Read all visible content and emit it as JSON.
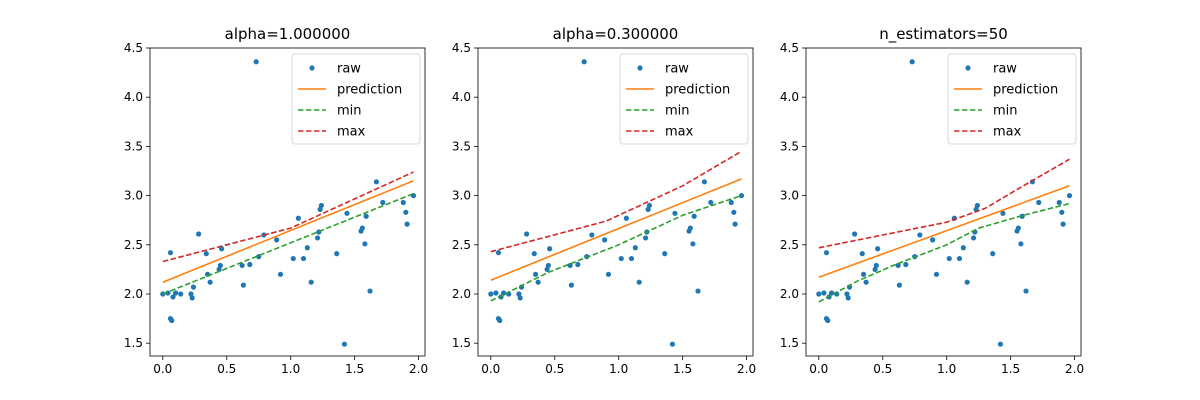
{
  "colors": {
    "raw": "#1f77b4",
    "prediction": "#ff7f0e",
    "min": "#2ca02c",
    "max": "#d62728"
  },
  "chart_data": [
    {
      "type": "scatter",
      "title": "alpha=1.000000",
      "xlabel": "",
      "ylabel": "",
      "xlim": [
        -0.1,
        2.05
      ],
      "ylim": [
        1.37,
        4.5
      ],
      "xticks": [
        "0.0",
        "0.5",
        "1.0",
        "1.5",
        "2.0"
      ],
      "yticks": [
        "1.5",
        "2.0",
        "2.5",
        "3.0",
        "3.5",
        "4.0",
        "4.5"
      ],
      "legend": [
        "raw",
        "prediction",
        "min",
        "max"
      ],
      "legend_position": "top-right",
      "raw": [
        [
          0.0,
          2.0
        ],
        [
          0.04,
          2.01
        ],
        [
          0.06,
          1.75
        ],
        [
          0.07,
          1.73
        ],
        [
          0.08,
          1.97
        ],
        [
          0.06,
          2.42
        ],
        [
          0.1,
          2.01
        ],
        [
          0.14,
          2.0
        ],
        [
          0.22,
          2.0
        ],
        [
          0.23,
          1.96
        ],
        [
          0.24,
          2.07
        ],
        [
          0.28,
          2.61
        ],
        [
          0.34,
          2.41
        ],
        [
          0.35,
          2.2
        ],
        [
          0.37,
          2.12
        ],
        [
          0.44,
          2.25
        ],
        [
          0.45,
          2.29
        ],
        [
          0.46,
          2.46
        ],
        [
          0.62,
          2.29
        ],
        [
          0.63,
          2.09
        ],
        [
          0.68,
          2.3
        ],
        [
          0.73,
          4.36
        ],
        [
          0.75,
          2.38
        ],
        [
          0.79,
          2.6
        ],
        [
          0.89,
          2.55
        ],
        [
          0.92,
          2.2
        ],
        [
          1.02,
          2.36
        ],
        [
          1.06,
          2.77
        ],
        [
          1.1,
          2.36
        ],
        [
          1.13,
          2.47
        ],
        [
          1.16,
          2.12
        ],
        [
          1.21,
          2.57
        ],
        [
          1.22,
          2.63
        ],
        [
          1.23,
          2.86
        ],
        [
          1.24,
          2.9
        ],
        [
          1.36,
          2.41
        ],
        [
          1.42,
          1.49
        ],
        [
          1.44,
          2.82
        ],
        [
          1.55,
          2.64
        ],
        [
          1.56,
          2.67
        ],
        [
          1.58,
          2.51
        ],
        [
          1.59,
          2.79
        ],
        [
          1.62,
          2.03
        ],
        [
          1.67,
          3.14
        ],
        [
          1.72,
          2.93
        ],
        [
          1.88,
          2.93
        ],
        [
          1.9,
          2.83
        ],
        [
          1.91,
          2.71
        ],
        [
          1.96,
          3.0
        ]
      ],
      "series": [
        {
          "name": "prediction",
          "x": [
            0.0,
            1.96
          ],
          "y": [
            2.12,
            3.15
          ]
        },
        {
          "name": "min",
          "x": [
            0.0,
            1.96
          ],
          "y": [
            2.0,
            3.02
          ]
        },
        {
          "name": "max",
          "x": [
            0.0,
            1.0,
            1.96
          ],
          "y": [
            2.33,
            2.67,
            3.24
          ]
        }
      ]
    },
    {
      "type": "scatter",
      "title": "alpha=0.300000",
      "xlabel": "",
      "ylabel": "",
      "xlim": [
        -0.1,
        2.05
      ],
      "ylim": [
        1.37,
        4.5
      ],
      "xticks": [
        "0.0",
        "0.5",
        "1.0",
        "1.5",
        "2.0"
      ],
      "yticks": [
        "1.5",
        "2.0",
        "2.5",
        "3.0",
        "3.5",
        "4.0",
        "4.5"
      ],
      "legend": [
        "raw",
        "prediction",
        "min",
        "max"
      ],
      "legend_position": "top-right",
      "raw": [
        [
          0.0,
          2.0
        ],
        [
          0.04,
          2.01
        ],
        [
          0.06,
          1.75
        ],
        [
          0.07,
          1.73
        ],
        [
          0.08,
          1.97
        ],
        [
          0.06,
          2.42
        ],
        [
          0.1,
          2.01
        ],
        [
          0.14,
          2.0
        ],
        [
          0.22,
          2.0
        ],
        [
          0.23,
          1.96
        ],
        [
          0.24,
          2.07
        ],
        [
          0.28,
          2.61
        ],
        [
          0.34,
          2.41
        ],
        [
          0.35,
          2.2
        ],
        [
          0.37,
          2.12
        ],
        [
          0.44,
          2.25
        ],
        [
          0.45,
          2.29
        ],
        [
          0.46,
          2.46
        ],
        [
          0.62,
          2.29
        ],
        [
          0.63,
          2.09
        ],
        [
          0.68,
          2.3
        ],
        [
          0.73,
          4.36
        ],
        [
          0.75,
          2.38
        ],
        [
          0.79,
          2.6
        ],
        [
          0.89,
          2.55
        ],
        [
          0.92,
          2.2
        ],
        [
          1.02,
          2.36
        ],
        [
          1.06,
          2.77
        ],
        [
          1.1,
          2.36
        ],
        [
          1.13,
          2.47
        ],
        [
          1.16,
          2.12
        ],
        [
          1.21,
          2.57
        ],
        [
          1.22,
          2.63
        ],
        [
          1.23,
          2.86
        ],
        [
          1.24,
          2.9
        ],
        [
          1.36,
          2.41
        ],
        [
          1.42,
          1.49
        ],
        [
          1.44,
          2.82
        ],
        [
          1.55,
          2.64
        ],
        [
          1.56,
          2.67
        ],
        [
          1.58,
          2.51
        ],
        [
          1.59,
          2.79
        ],
        [
          1.62,
          2.03
        ],
        [
          1.67,
          3.14
        ],
        [
          1.72,
          2.93
        ],
        [
          1.88,
          2.93
        ],
        [
          1.9,
          2.83
        ],
        [
          1.91,
          2.71
        ],
        [
          1.96,
          3.0
        ]
      ],
      "series": [
        {
          "name": "prediction",
          "x": [
            0.0,
            1.96
          ],
          "y": [
            2.14,
            3.17
          ]
        },
        {
          "name": "min",
          "x": [
            0.0,
            0.45,
            1.0,
            1.5,
            1.96
          ],
          "y": [
            1.93,
            2.22,
            2.5,
            2.8,
            3.0
          ]
        },
        {
          "name": "max",
          "x": [
            0.0,
            0.9,
            1.5,
            1.96
          ],
          "y": [
            2.43,
            2.74,
            3.1,
            3.45
          ]
        }
      ]
    },
    {
      "type": "scatter",
      "title": "n_estimators=50",
      "xlabel": "",
      "ylabel": "",
      "xlim": [
        -0.1,
        2.05
      ],
      "ylim": [
        1.37,
        4.5
      ],
      "xticks": [
        "0.0",
        "0.5",
        "1.0",
        "1.5",
        "2.0"
      ],
      "yticks": [
        "1.5",
        "2.0",
        "2.5",
        "3.0",
        "3.5",
        "4.0",
        "4.5"
      ],
      "legend": [
        "raw",
        "prediction",
        "min",
        "max"
      ],
      "legend_position": "top-right",
      "raw": [
        [
          0.0,
          2.0
        ],
        [
          0.04,
          2.01
        ],
        [
          0.06,
          1.75
        ],
        [
          0.07,
          1.73
        ],
        [
          0.08,
          1.97
        ],
        [
          0.06,
          2.42
        ],
        [
          0.1,
          2.01
        ],
        [
          0.14,
          2.0
        ],
        [
          0.22,
          2.0
        ],
        [
          0.23,
          1.96
        ],
        [
          0.24,
          2.07
        ],
        [
          0.28,
          2.61
        ],
        [
          0.34,
          2.41
        ],
        [
          0.35,
          2.2
        ],
        [
          0.37,
          2.12
        ],
        [
          0.44,
          2.25
        ],
        [
          0.45,
          2.29
        ],
        [
          0.46,
          2.46
        ],
        [
          0.62,
          2.29
        ],
        [
          0.63,
          2.09
        ],
        [
          0.68,
          2.3
        ],
        [
          0.73,
          4.36
        ],
        [
          0.75,
          2.38
        ],
        [
          0.79,
          2.6
        ],
        [
          0.89,
          2.55
        ],
        [
          0.92,
          2.2
        ],
        [
          1.02,
          2.36
        ],
        [
          1.06,
          2.77
        ],
        [
          1.1,
          2.36
        ],
        [
          1.13,
          2.47
        ],
        [
          1.16,
          2.12
        ],
        [
          1.21,
          2.57
        ],
        [
          1.22,
          2.63
        ],
        [
          1.23,
          2.86
        ],
        [
          1.24,
          2.9
        ],
        [
          1.36,
          2.41
        ],
        [
          1.42,
          1.49
        ],
        [
          1.44,
          2.82
        ],
        [
          1.55,
          2.64
        ],
        [
          1.56,
          2.67
        ],
        [
          1.58,
          2.51
        ],
        [
          1.59,
          2.79
        ],
        [
          1.62,
          2.03
        ],
        [
          1.67,
          3.14
        ],
        [
          1.72,
          2.93
        ],
        [
          1.88,
          2.93
        ],
        [
          1.9,
          2.83
        ],
        [
          1.91,
          2.71
        ],
        [
          1.96,
          3.0
        ]
      ],
      "series": [
        {
          "name": "prediction",
          "x": [
            0.0,
            1.96
          ],
          "y": [
            2.17,
            3.1
          ]
        },
        {
          "name": "min",
          "x": [
            0.0,
            0.3,
            0.6,
            1.0,
            1.25,
            1.6,
            1.96
          ],
          "y": [
            1.92,
            2.13,
            2.3,
            2.5,
            2.67,
            2.8,
            2.92
          ]
        },
        {
          "name": "max",
          "x": [
            0.0,
            0.5,
            1.0,
            1.3,
            1.6,
            1.96
          ],
          "y": [
            2.47,
            2.6,
            2.73,
            2.87,
            3.1,
            3.37
          ]
        }
      ]
    }
  ]
}
